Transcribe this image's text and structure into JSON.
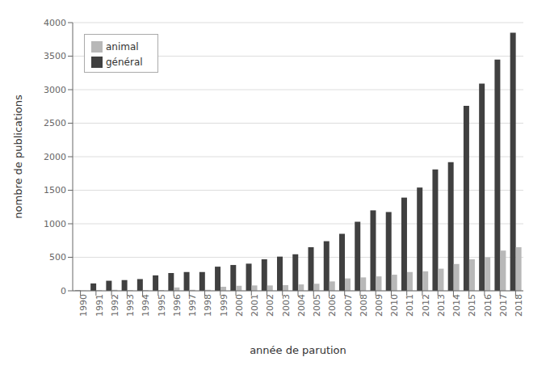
{
  "chart_data": {
    "type": "bar",
    "categories": [
      "1990",
      "1991",
      "1992",
      "1993",
      "1994",
      "1995",
      "1996",
      "1997",
      "1998",
      "1999",
      "2000",
      "2001",
      "2002",
      "2003",
      "2004",
      "2005",
      "2006",
      "2007",
      "2008",
      "2009",
      "2010",
      "2011",
      "2012",
      "2013",
      "2014",
      "2015",
      "2016",
      "2017",
      "2018"
    ],
    "series": [
      {
        "name": "général",
        "color": "#404040",
        "values": [
          5,
          110,
          150,
          160,
          175,
          230,
          265,
          280,
          280,
          360,
          385,
          405,
          470,
          510,
          545,
          650,
          740,
          850,
          1030,
          1200,
          1175,
          1390,
          1540,
          1810,
          1920,
          2760,
          3090,
          3450,
          3850
        ]
      },
      {
        "name": "animal",
        "color": "#b8b8b8",
        "values": [
          2,
          10,
          15,
          10,
          10,
          12,
          50,
          15,
          15,
          60,
          75,
          80,
          80,
          85,
          95,
          105,
          140,
          185,
          200,
          215,
          240,
          280,
          290,
          330,
          400,
          470,
          500,
          600,
          650
        ]
      }
    ],
    "xlabel": "année de parution",
    "ylabel": "nombre de publications",
    "ylim": [
      0,
      4000
    ],
    "yticks": [
      0,
      500,
      1000,
      1500,
      2000,
      2500,
      3000,
      3500,
      4000
    ],
    "grid": true,
    "legend": "upper left"
  }
}
